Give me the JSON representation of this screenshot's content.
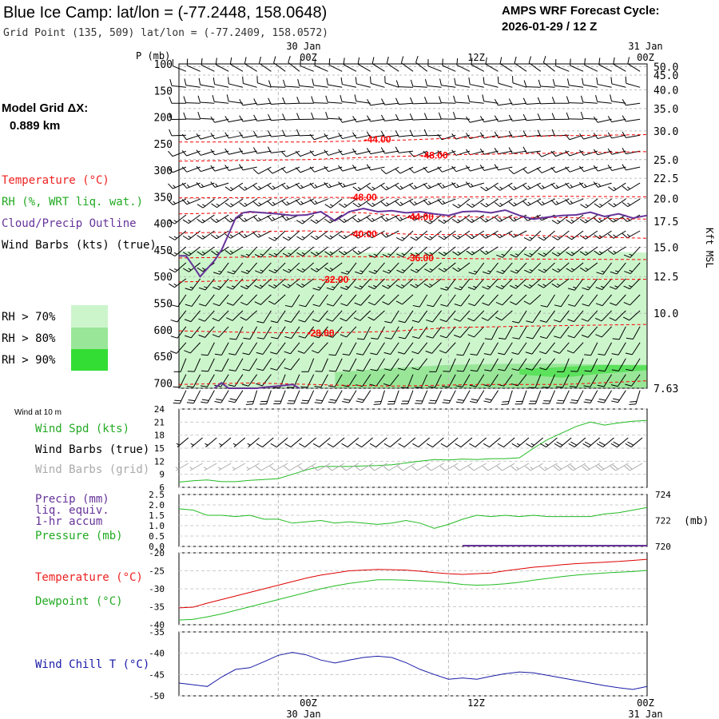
{
  "header": {
    "title": "Blue Ice Camp:  lat/lon = (-77.2448, 158.0648)",
    "grid_point": "Grid Point (135, 509) lat/lon = (-77.2409, 158.0572)",
    "cycle_title": "AMPS WRF Forecast Cycle:",
    "cycle_value": "2026-01-29 / 12  Z"
  },
  "left_labels": {
    "grid_dx_title": "Model Grid ΔX:",
    "grid_dx_value": "0.889 km",
    "temperature": "Temperature (°C)",
    "rh": "RH (%, WRT liq. wat.)",
    "cloud": "Cloud/Precip Outline",
    "wind_barbs": "Wind Barbs (kts) (true)",
    "rh_70": "RH > 70%",
    "rh_80": "RH > 80%",
    "rh_90": "RH > 90%"
  },
  "colors": {
    "temperature": "#ff0000",
    "rh_green": "#33cc33",
    "cloud_outline": "#663399",
    "rh70": "#ccf5cc",
    "rh80": "#99e699",
    "rh90": "#33dd33",
    "wind_chill": "#1a1aa6",
    "precip": "#663399",
    "grid_barbs": "#aaaaaa"
  },
  "time_axis": {
    "top_date_labels": [
      "30 Jan",
      "31 Jan"
    ],
    "tick_labels": [
      "00Z",
      "12Z",
      "00Z"
    ],
    "bottom_date_labels": [
      "30 Jan",
      "31 Jan"
    ]
  },
  "chart_data": [
    {
      "type": "contour",
      "name": "sounding",
      "ylabel": "P (mb)",
      "y2label": "Kft MSL",
      "y_ticks": [
        "100",
        "150",
        "200",
        "250",
        "300",
        "350",
        "400",
        "450",
        "500",
        "550",
        "600",
        "650",
        "700"
      ],
      "y_tick_values": [
        100,
        150,
        200,
        250,
        300,
        350,
        400,
        450,
        500,
        550,
        600,
        650,
        700
      ],
      "ylim": [
        100,
        710
      ],
      "kft_labels": [
        "50.0",
        "45.0",
        "40.0",
        "35.0",
        "30.0",
        "25.0",
        "22.5",
        "20.0",
        "17.5",
        "15.0",
        "12.5",
        "10.0",
        "7.63"
      ],
      "kft_pressure": [
        105,
        121,
        149,
        184,
        226,
        280,
        315,
        353,
        396,
        445,
        500,
        569,
        710
      ],
      "xlim_hours": [
        -7,
        26
      ],
      "temperature_contours": [
        {
          "label": "-44.00",
          "points": [
            [
              -7,
              247
            ],
            [
              2,
              247
            ],
            [
              9,
              243
            ],
            [
              14,
              238
            ],
            [
              20,
              235
            ],
            [
              26,
              233
            ]
          ],
          "label_at": [
            7,
            242
          ]
        },
        {
          "label": "-48.00",
          "points": [
            [
              -7,
              283
            ],
            [
              2,
              280
            ],
            [
              6,
              276
            ],
            [
              12,
              271
            ],
            [
              19,
              268
            ],
            [
              26,
              265
            ]
          ],
          "label_at": [
            11,
            272
          ]
        },
        {
          "label": "-48.00",
          "points": [
            [
              -7,
              352
            ],
            [
              2,
              351
            ],
            [
              8,
              351
            ],
            [
              14,
              350
            ],
            [
              20,
              349
            ],
            [
              26,
              350
            ]
          ],
          "label_at": [
            6,
            351
          ]
        },
        {
          "label": "-44.00",
          "points": [
            [
              -7,
              382
            ],
            [
              2,
              378
            ],
            [
              6,
              380
            ],
            [
              9,
              386
            ],
            [
              14,
              388
            ],
            [
              20,
              389
            ],
            [
              26,
              392
            ]
          ],
          "label_at": [
            10,
            388
          ]
        },
        {
          "label": "-40.00",
          "points": [
            [
              -7,
              418
            ],
            [
              2,
              414
            ],
            [
              6,
              417
            ],
            [
              10,
              421
            ],
            [
              16,
              421
            ],
            [
              20,
              424
            ],
            [
              26,
              428
            ]
          ],
          "label_at": [
            6,
            420
          ]
        },
        {
          "label": "-36.00",
          "points": [
            [
              -7,
              465
            ],
            [
              2,
              462
            ],
            [
              8,
              463
            ],
            [
              12,
              466
            ],
            [
              18,
              467
            ],
            [
              26,
              468
            ]
          ],
          "label_at": [
            10,
            465
          ]
        },
        {
          "label": "-32.00",
          "points": [
            [
              -7,
              510
            ],
            [
              0,
              506
            ],
            [
              4,
              505
            ],
            [
              8,
              506
            ],
            [
              14,
              505
            ],
            [
              20,
              505
            ],
            [
              26,
              505
            ]
          ],
          "label_at": [
            4,
            506
          ]
        },
        {
          "label": "-28.00",
          "points": [
            [
              -7,
              602
            ],
            [
              -2,
              605
            ],
            [
              3,
              606
            ],
            [
              8,
              603
            ],
            [
              12,
              596
            ],
            [
              18,
              593
            ],
            [
              26,
              590
            ]
          ],
          "label_at": [
            3,
            606
          ]
        },
        {
          "label": "",
          "points": [
            [
              -7,
              703
            ],
            [
              -2,
              700
            ],
            [
              4,
              704
            ],
            [
              8,
              706
            ],
            [
              14,
              703
            ],
            [
              20,
              703
            ],
            [
              26,
              696
            ]
          ],
          "label_at": null
        }
      ],
      "cloud_outline": [
        [
          -7,
          461
        ],
        [
          -6.5,
          461
        ],
        [
          -6,
          480
        ],
        [
          -5.5,
          500
        ],
        [
          -5,
          485
        ],
        [
          -4.5,
          470
        ],
        [
          -4,
          450
        ],
        [
          -3.5,
          420
        ],
        [
          -3,
          390
        ],
        [
          -2.5,
          380
        ],
        [
          -2,
          378
        ],
        [
          -1,
          380
        ],
        [
          0,
          382
        ],
        [
          1,
          385
        ],
        [
          2,
          384
        ],
        [
          3,
          378
        ],
        [
          4,
          395
        ],
        [
          5,
          378
        ],
        [
          6,
          372
        ],
        [
          7,
          378
        ],
        [
          8,
          376
        ],
        [
          9,
          380
        ],
        [
          10,
          378
        ],
        [
          11,
          382
        ],
        [
          12,
          385
        ],
        [
          13,
          378
        ],
        [
          14,
          377
        ],
        [
          15,
          380
        ],
        [
          16,
          375
        ],
        [
          17,
          385
        ],
        [
          18,
          392
        ],
        [
          19,
          388
        ],
        [
          20,
          385
        ],
        [
          21,
          384
        ],
        [
          22,
          379
        ],
        [
          23,
          387
        ],
        [
          24,
          382
        ],
        [
          25,
          390
        ],
        [
          26,
          385
        ]
      ],
      "cloud_outline_bottom": [
        [
          -4.5,
          720
        ],
        [
          -4,
          700
        ],
        [
          -3.5,
          712
        ],
        [
          -2,
          720
        ],
        [
          -1.5,
          712
        ],
        [
          -1,
          708
        ],
        [
          0,
          706
        ],
        [
          1,
          703
        ],
        [
          1.5,
          718
        ]
      ],
      "rh70_top": [
        [
          -7,
          453
        ],
        [
          -5,
          449
        ],
        [
          -3,
          449
        ],
        [
          1,
          449
        ],
        [
          6,
          455
        ],
        [
          12,
          453
        ],
        [
          18,
          450
        ],
        [
          22,
          452
        ],
        [
          26,
          455
        ]
      ],
      "rh80_regions": [
        [
          [
            4,
            680
          ],
          [
            8,
            672
          ],
          [
            12,
            666
          ],
          [
            16,
            664
          ],
          [
            20,
            664
          ],
          [
            24,
            666
          ],
          [
            26,
            668
          ],
          [
            26,
            710
          ],
          [
            4,
            710
          ]
        ]
      ],
      "rh90_regions": [
        [
          [
            17,
            674
          ],
          [
            20,
            670
          ],
          [
            23,
            666
          ],
          [
            26,
            666
          ],
          [
            26,
            676
          ],
          [
            23,
            682
          ],
          [
            20,
            690
          ],
          [
            17,
            684
          ]
        ]
      ],
      "wind_barb_levels": [
        105,
        135,
        165,
        195,
        225,
        255,
        285,
        315,
        345,
        375,
        405,
        435,
        465,
        495,
        525,
        555,
        585,
        615,
        645,
        675,
        705
      ],
      "wind_barb_directions": [
        300,
        280,
        270,
        265,
        260,
        255,
        250,
        245,
        240,
        240,
        235,
        230,
        225,
        225,
        220,
        220,
        215,
        215,
        210,
        210,
        205
      ],
      "wind_barb_speeds": [
        10,
        10,
        10,
        10,
        10,
        10,
        10,
        15,
        15,
        15,
        15,
        15,
        15,
        15,
        10,
        10,
        10,
        10,
        10,
        10,
        20
      ]
    },
    {
      "type": "line",
      "name": "wind10m",
      "title": "Wind at 10 m",
      "series_labels": [
        "Wind Spd (kts)",
        "Wind Barbs (true)",
        "Wind Barbs (grid)"
      ],
      "y_ticks": [
        "6",
        "9",
        "12",
        "15",
        "18",
        "21",
        "24"
      ],
      "ylim": [
        6,
        24
      ],
      "x_hours": [
        -7,
        -6,
        -5,
        -4,
        -3,
        -2,
        -1,
        0,
        1,
        2,
        3,
        4,
        5,
        6,
        7,
        8,
        9,
        10,
        11,
        12,
        13,
        14,
        15,
        16,
        17,
        18,
        19,
        20,
        21,
        22,
        23,
        24,
        25,
        26
      ],
      "wind_speed": [
        7.2,
        7.5,
        7.7,
        7.3,
        7.3,
        7.6,
        7.8,
        8.0,
        9.0,
        10.0,
        10.8,
        10.8,
        10.8,
        10.9,
        11.0,
        11.2,
        11.6,
        12.0,
        12.4,
        12.3,
        12.5,
        12.4,
        12.6,
        12.6,
        12.8,
        15.0,
        17.0,
        18.5,
        20.0,
        21.0,
        20.3,
        20.8,
        21.2,
        21.4
      ],
      "barb_directions": [
        230,
        230,
        230,
        230,
        230,
        230,
        230,
        230,
        230,
        230,
        230,
        230,
        230,
        230,
        230,
        230,
        230,
        230,
        230,
        230,
        230,
        230,
        230,
        230,
        230,
        230,
        230,
        230,
        230,
        230,
        230,
        230,
        230,
        230
      ],
      "barb_speeds": [
        5,
        5,
        5,
        5,
        5,
        5,
        5,
        10,
        10,
        10,
        10,
        10,
        10,
        10,
        10,
        10,
        10,
        10,
        10,
        10,
        10,
        10,
        10,
        10,
        10,
        15,
        15,
        15,
        20,
        20,
        20,
        20,
        20,
        20
      ]
    },
    {
      "type": "line",
      "name": "precip_pressure",
      "series_labels": [
        "Precip (mm)",
        "liq. equiv.",
        "1-hr accum",
        "Pressure (mb)"
      ],
      "y_ticks_left": [
        "0.0",
        "0.5",
        "1.0",
        "1.5",
        "2.0",
        "2.5"
      ],
      "ylim_left": [
        0,
        2.5
      ],
      "y_ticks_right": [
        "720",
        "722",
        "724"
      ],
      "ylim_right": [
        720,
        724
      ],
      "y2label": "(mb)",
      "x_hours": [
        -7,
        -6,
        -5,
        -4,
        -3,
        -2,
        -1,
        0,
        1,
        2,
        3,
        4,
        5,
        6,
        7,
        8,
        9,
        10,
        11,
        12,
        13,
        14,
        15,
        16,
        17,
        18,
        19,
        20,
        21,
        22,
        23,
        24,
        25,
        26
      ],
      "pressure": [
        722.9,
        722.8,
        722.4,
        722.4,
        722.3,
        722.4,
        722.1,
        722.1,
        721.8,
        721.9,
        722.0,
        721.8,
        721.9,
        721.8,
        721.7,
        721.8,
        722.0,
        721.8,
        721.4,
        721.7,
        722.1,
        722.4,
        722.3,
        722.4,
        722.3,
        722.4,
        722.3,
        722.3,
        722.3,
        722.3,
        722.5,
        722.6,
        722.8,
        723.0
      ],
      "precip_hours": [
        [
          13,
          0
        ],
        [
          26,
          0
        ]
      ]
    },
    {
      "type": "line",
      "name": "temp_dewpoint",
      "series": [
        {
          "name": "Temperature (°C)",
          "values": [
            -35.3,
            -35.1,
            -34.0,
            -33.0,
            -32.0,
            -31.0,
            -30.0,
            -29.0,
            -28.0,
            -27.0,
            -26.2,
            -25.6,
            -25.0,
            -24.8,
            -24.6,
            -24.7,
            -24.8,
            -25.1,
            -25.5,
            -25.8,
            -26.0,
            -25.8,
            -25.6,
            -25.0,
            -24.5,
            -24.0,
            -23.7,
            -23.3,
            -23.0,
            -22.8,
            -22.6,
            -22.4,
            -22.1,
            -21.8
          ]
        },
        {
          "name": "Dewpoint (°C)",
          "values": [
            -38.7,
            -38.5,
            -37.8,
            -37.0,
            -36.0,
            -35.0,
            -34.0,
            -33.0,
            -32.0,
            -31.0,
            -30.0,
            -29.2,
            -28.5,
            -28.0,
            -27.5,
            -27.5,
            -27.6,
            -27.8,
            -28.0,
            -28.3,
            -28.8,
            -29.0,
            -28.9,
            -28.6,
            -28.2,
            -27.6,
            -27.1,
            -26.6,
            -26.2,
            -25.9,
            -25.6,
            -25.4,
            -25.2,
            -24.9
          ]
        }
      ],
      "y_ticks": [
        "-40",
        "-35",
        "-30",
        "-25",
        "-20"
      ],
      "ylim": [
        -40,
        -20
      ],
      "x_hours": [
        -7,
        -6,
        -5,
        -4,
        -3,
        -2,
        -1,
        0,
        1,
        2,
        3,
        4,
        5,
        6,
        7,
        8,
        9,
        10,
        11,
        12,
        13,
        14,
        15,
        16,
        17,
        18,
        19,
        20,
        21,
        22,
        23,
        24,
        25,
        26
      ]
    },
    {
      "type": "line",
      "name": "wind_chill",
      "series": [
        {
          "name": "Wind Chill T (°C)",
          "values": [
            -47.0,
            -47.4,
            -47.8,
            -45.6,
            -43.8,
            -43.4,
            -42.0,
            -40.5,
            -39.8,
            -40.4,
            -41.6,
            -42.3,
            -41.6,
            -41.0,
            -40.7,
            -41.0,
            -42.2,
            -43.8,
            -45.0,
            -46.1,
            -45.8,
            -46.1,
            -45.4,
            -44.8,
            -44.4,
            -44.6,
            -45.2,
            -45.8,
            -46.4,
            -47.0,
            -47.6,
            -48.1,
            -48.5,
            -47.8
          ]
        }
      ],
      "y_ticks": [
        "-50",
        "-45",
        "-40",
        "-35"
      ],
      "ylim": [
        -50,
        -35
      ],
      "x_hours": [
        -7,
        -6,
        -5,
        -4,
        -3,
        -2,
        -1,
        0,
        1,
        2,
        3,
        4,
        5,
        6,
        7,
        8,
        9,
        10,
        11,
        12,
        13,
        14,
        15,
        16,
        17,
        18,
        19,
        20,
        21,
        22,
        23,
        24,
        25,
        26
      ]
    }
  ]
}
